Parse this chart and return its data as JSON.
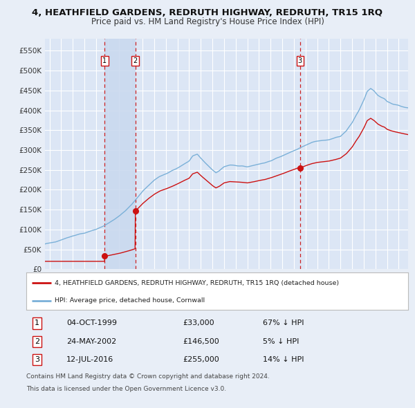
{
  "title": "4, HEATHFIELD GARDENS, REDRUTH HIGHWAY, REDRUTH, TR15 1RQ",
  "subtitle": "Price paid vs. HM Land Registry's House Price Index (HPI)",
  "title_fontsize": 9.5,
  "subtitle_fontsize": 8.5,
  "bg_color": "#e8eef7",
  "plot_bg_color": "#dce6f5",
  "grid_color": "#ffffff",
  "hpi_color": "#7ab0d8",
  "price_color": "#cc1111",
  "marker_color": "#cc1111",
  "vline_color": "#cc2222",
  "highlight_color": "#c8d8ee",
  "ylim": [
    0,
    580000
  ],
  "yticks": [
    0,
    50000,
    100000,
    150000,
    200000,
    250000,
    300000,
    350000,
    400000,
    450000,
    500000,
    550000
  ],
  "xlim_start": 1994.6,
  "xlim_end": 2025.8,
  "sales": [
    {
      "label": "1",
      "date": 1999.75,
      "price": 33000,
      "text": "04-OCT-1999",
      "price_str": "£33,000",
      "hpi_str": "67% ↓ HPI"
    },
    {
      "label": "2",
      "date": 2002.38,
      "price": 146500,
      "text": "24-MAY-2002",
      "price_str": "£146,500",
      "hpi_str": "5% ↓ HPI"
    },
    {
      "label": "3",
      "date": 2016.53,
      "price": 255000,
      "text": "12-JUL-2016",
      "price_str": "£255,000",
      "hpi_str": "14% ↓ HPI"
    }
  ],
  "legend_line1": "4, HEATHFIELD GARDENS, REDRUTH HIGHWAY, REDRUTH, TR15 1RQ (detached house)",
  "legend_line2": "HPI: Average price, detached house, Cornwall",
  "footer1": "Contains HM Land Registry data © Crown copyright and database right 2024.",
  "footer2": "This data is licensed under the Open Government Licence v3.0."
}
